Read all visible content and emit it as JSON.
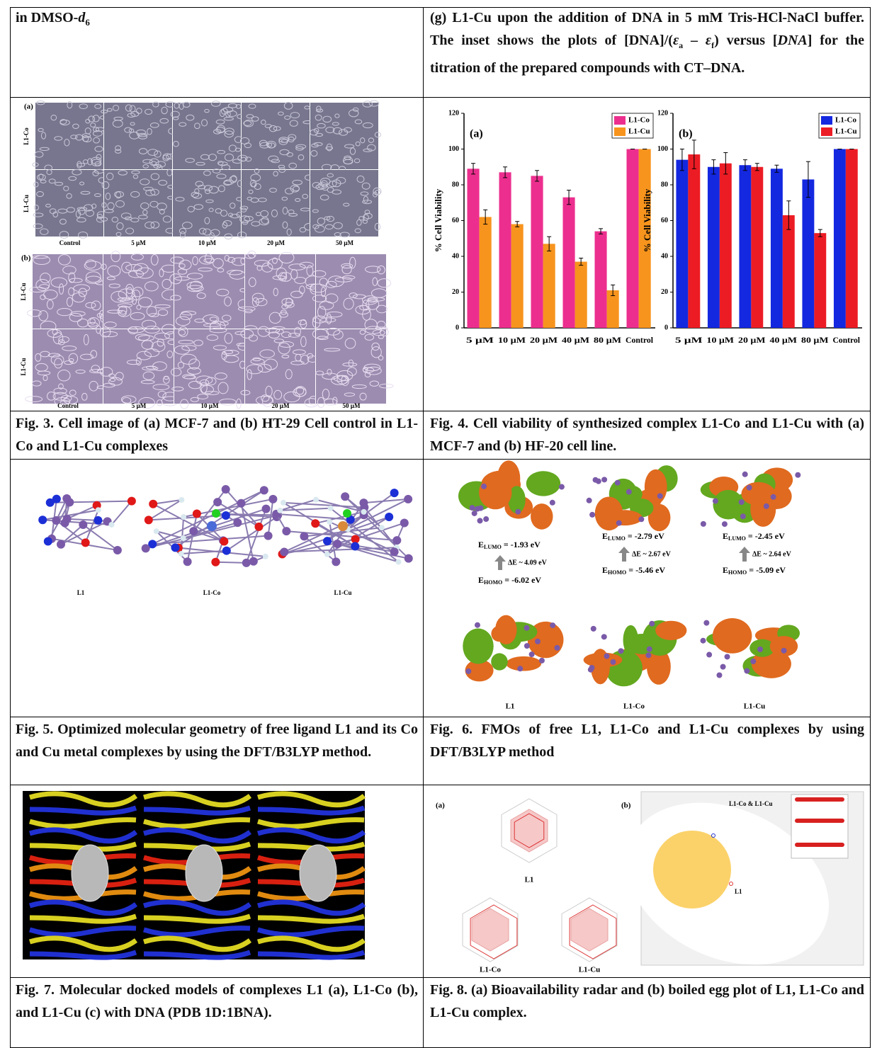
{
  "top_left": [
    "in DMSO-",
    "d",
    "6"
  ],
  "top_right": [
    "(g) L1-Cu upon the addition of DNA in 5 mM Tris-HCl-NaCl buffer. The inset shows the plots of [DNA]/(",
    "ε",
    "a",
    " – ",
    "ε",
    "f",
    ") versus [",
    "DNA",
    "] for the titration of the prepared compounds with CT–DNA."
  ],
  "figure3": {
    "panels": [
      {
        "label": "(a)",
        "rows": [
          "L1-Co",
          "L1-Cu"
        ],
        "columns": [
          "Control",
          "5 µM",
          "10 µM",
          "20 µM",
          "50 µM"
        ]
      },
      {
        "label": "(b)",
        "rows": [
          "L1-Cu",
          "L1-Cu"
        ],
        "columns": [
          "Control",
          "5 µM",
          "10 µM",
          "20 µM",
          "50 µM"
        ]
      }
    ]
  },
  "figure4": {
    "charts": [
      {
        "type": "bar",
        "panel": "(a)",
        "ylabel": "% Cell Viability",
        "categories": [
          "5 µM",
          "10 µM",
          "20 µM",
          "40 µM",
          "80 µM",
          "Control"
        ],
        "ylim": [
          0,
          120
        ],
        "yticks": [
          0,
          20,
          40,
          60,
          80,
          100,
          120
        ],
        "series": [
          {
            "name": "L1-Co",
            "color": "#ec2f8e",
            "values": [
              89,
              87,
              85,
              73,
              54,
              100
            ],
            "errors": [
              3,
              3,
              3,
              4,
              1.5,
              0
            ]
          },
          {
            "name": "L1-Cu",
            "color": "#f7941d",
            "values": [
              62,
              58,
              47,
              37,
              21,
              100
            ],
            "errors": [
              4,
              1.5,
              4,
              2,
              3,
              0
            ]
          }
        ]
      },
      {
        "type": "bar",
        "panel": "(b)",
        "ylabel": "% Cell Viability",
        "categories": [
          "5 µM",
          "10 µM",
          "20 µM",
          "40 µM",
          "80 µM",
          "Control"
        ],
        "ylim": [
          0,
          120
        ],
        "yticks": [
          0,
          20,
          40,
          60,
          80,
          100,
          120
        ],
        "series": [
          {
            "name": "L1-Co",
            "color": "#1428e0",
            "values": [
              94,
              90,
              91,
              89,
              83,
              100
            ],
            "errors": [
              6,
              4,
              3,
              2,
              10,
              0
            ]
          },
          {
            "name": "L1-Cu",
            "color": "#ec1c24",
            "values": [
              97,
              92,
              90,
              63,
              53,
              100
            ],
            "errors": [
              8,
              6,
              2,
              8,
              2,
              0
            ]
          }
        ]
      }
    ]
  },
  "figure5": {
    "labels": [
      "L1",
      "L1-Co",
      "L1-Cu"
    ]
  },
  "figure6": {
    "symbol": "E",
    "lumo_sub": "LUMO",
    "homo_sub": "HOMO",
    "items": [
      {
        "name": "L1",
        "lumo": " = -1.93 eV",
        "gap": "ΔE ~ 4.09 eV",
        "homo": " = -6.02 eV"
      },
      {
        "name": "L1-Co",
        "lumo": " = -2.79 eV",
        "gap": "ΔE ~ 2.67 eV",
        "homo": " = -5.46 eV"
      },
      {
        "name": "L1-Cu",
        "lumo": " = -2.45 eV",
        "gap": "ΔE ~ 2.64 eV",
        "homo": " = -5.09 eV"
      }
    ]
  },
  "figure8": {
    "panel_a": "(a)",
    "panel_b": "(b)",
    "radar_labels": [
      "L1",
      "L1-Co",
      "L1-Cu"
    ],
    "egg_labels": [
      "L1-Co & L1-Cu",
      "L1"
    ]
  },
  "captions": {
    "fig3": "Fig. 3. Cell image of (a) MCF-7 and (b) HT-29 Cell control in L1-Co and L1-Cu complexes",
    "fig4": "Fig. 4. Cell viability of synthesized complex L1-Co and L1-Cu with (a) MCF-7 and (b) HF-20 cell line.",
    "fig5": "Fig. 5. Optimized molecular geometry of free ligand L1 and its Co and Cu metal complexes by using the DFT/B3LYP method.",
    "fig6": "Fig. 6. FMOs of free L1, L1-Co and L1-Cu complexes by using DFT/B3LYP method",
    "fig7": "Fig. 7. Molecular docked models of complexes L1 (a), L1-Co (b), and L1-Cu (c) with DNA (PDB 1D:1BNA).",
    "fig8": "Fig. 8. (a) Bioavailability radar and (b) boiled egg plot of L1, L1-Co and L1-Cu complex."
  }
}
